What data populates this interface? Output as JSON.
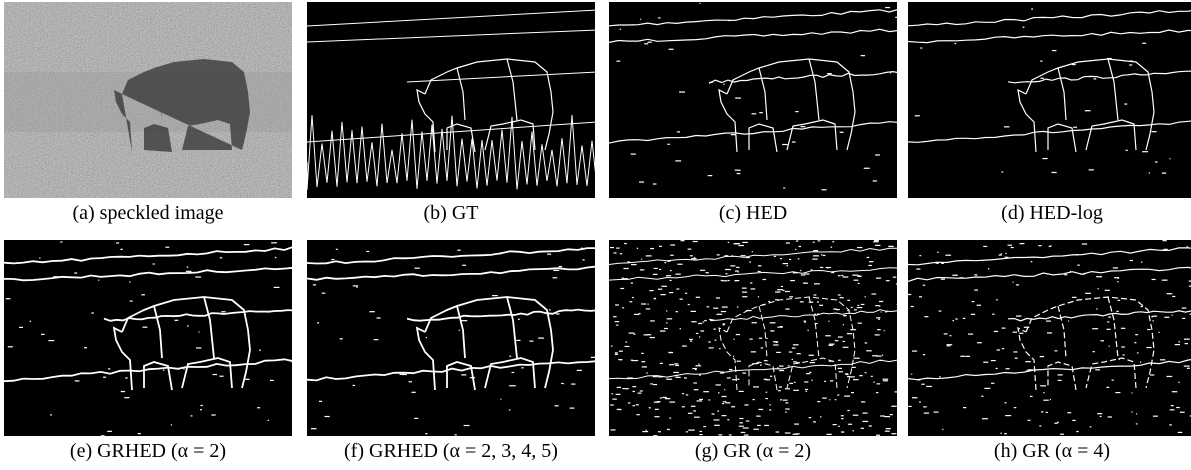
{
  "figure": {
    "panels": [
      {
        "caption": "(a) speckled image"
      },
      {
        "caption": "(b) GT"
      },
      {
        "caption": "(c) HED"
      },
      {
        "caption": "(d) HED-log"
      },
      {
        "caption": "(e) GRHED (α = 2)"
      },
      {
        "caption": "(f) GRHED (α = 2, 3, 4, 5)"
      },
      {
        "caption": "(g) GR (α = 2)"
      },
      {
        "caption": "(h) GR (α = 4)"
      }
    ]
  }
}
